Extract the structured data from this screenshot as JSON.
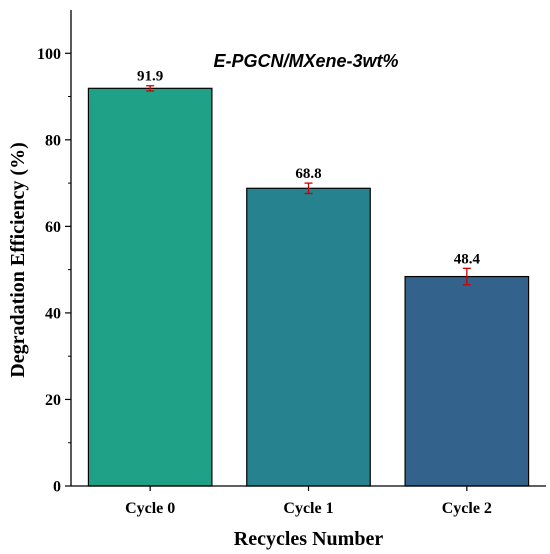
{
  "chart_data": {
    "type": "bar",
    "categories": [
      "Cycle 0",
      "Cycle 1",
      "Cycle 2"
    ],
    "values": [
      91.9,
      68.8,
      48.4
    ],
    "errors": [
      0.6,
      1.2,
      1.9
    ],
    "data_labels": [
      "91.9",
      "68.8",
      "48.4"
    ],
    "bar_colors": [
      "#1fa187",
      "#26828e",
      "#33638d"
    ],
    "error_bar_color": "#cc0000",
    "annotation": "E-PGCN/MXene-3wt%",
    "xlabel": "Recycles Number",
    "ylabel": "Degradation Efficiency (%)",
    "ylim": [
      0,
      110
    ],
    "yticks": [
      0,
      20,
      40,
      60,
      80,
      100
    ],
    "ytick_labels": [
      "0",
      "20",
      "40",
      "60",
      "80",
      "100"
    ],
    "grid": false,
    "legend": "none"
  }
}
